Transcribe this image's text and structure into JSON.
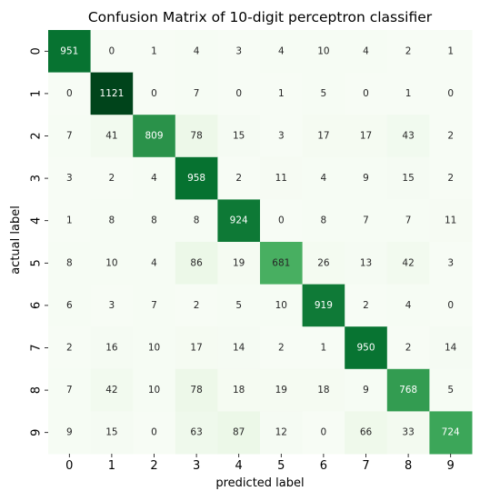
{
  "chart_data": {
    "type": "heatmap",
    "title": "Confusion Matrix of 10-digit perceptron classifier",
    "xlabel": "predicted label",
    "ylabel": "actual label",
    "x_categories": [
      "0",
      "1",
      "2",
      "3",
      "4",
      "5",
      "6",
      "7",
      "8",
      "9"
    ],
    "y_categories": [
      "0",
      "1",
      "2",
      "3",
      "4",
      "5",
      "6",
      "7",
      "8",
      "9"
    ],
    "values": [
      [
        951,
        0,
        1,
        4,
        3,
        4,
        10,
        4,
        2,
        1
      ],
      [
        0,
        1121,
        0,
        7,
        0,
        1,
        5,
        0,
        1,
        0
      ],
      [
        7,
        41,
        809,
        78,
        15,
        3,
        17,
        17,
        43,
        2
      ],
      [
        3,
        2,
        4,
        958,
        2,
        11,
        4,
        9,
        15,
        2
      ],
      [
        1,
        8,
        8,
        8,
        924,
        0,
        8,
        7,
        7,
        11
      ],
      [
        8,
        10,
        4,
        86,
        19,
        681,
        26,
        13,
        42,
        3
      ],
      [
        6,
        3,
        7,
        2,
        5,
        10,
        919,
        2,
        4,
        0
      ],
      [
        2,
        16,
        10,
        17,
        14,
        2,
        1,
        950,
        2,
        14
      ],
      [
        7,
        42,
        10,
        78,
        18,
        19,
        18,
        9,
        768,
        5
      ],
      [
        9,
        15,
        0,
        63,
        87,
        12,
        0,
        66,
        33,
        724
      ]
    ],
    "value_range": [
      0,
      1121
    ],
    "colormap": "Greens",
    "annotated": true,
    "colorbar": false,
    "grid": false
  }
}
